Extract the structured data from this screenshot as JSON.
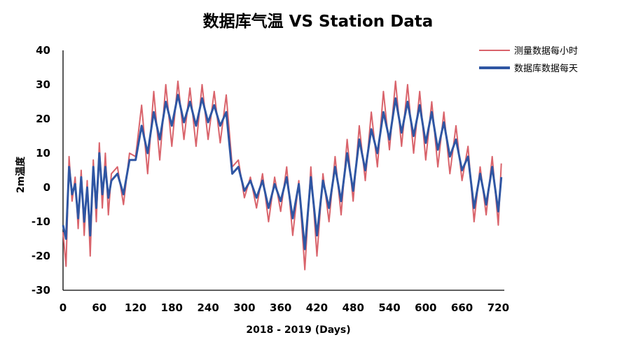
{
  "chart_data": {
    "type": "line",
    "title": "数据库气温 VS  Station Data",
    "xlabel": "2018 - 2019 (Days)",
    "ylabel": "2m温度",
    "xlim": [
      0,
      730
    ],
    "ylim": [
      -30,
      40
    ],
    "x_ticks": [
      0,
      60,
      120,
      180,
      240,
      300,
      360,
      420,
      480,
      540,
      600,
      660,
      720
    ],
    "y_ticks": [
      -30,
      -20,
      -10,
      0,
      10,
      20,
      30,
      40
    ],
    "grid": false,
    "legend_position": "top-right",
    "series": [
      {
        "name": "测量数据每小时",
        "color": "#d9636b",
        "x": [
          0,
          5,
          10,
          15,
          20,
          25,
          30,
          35,
          40,
          45,
          50,
          55,
          60,
          65,
          70,
          75,
          80,
          90,
          100,
          110,
          120,
          130,
          140,
          150,
          160,
          170,
          180,
          190,
          200,
          210,
          220,
          230,
          240,
          250,
          260,
          270,
          280,
          290,
          300,
          310,
          320,
          330,
          340,
          350,
          360,
          370,
          380,
          390,
          400,
          410,
          420,
          430,
          440,
          450,
          460,
          470,
          480,
          490,
          500,
          510,
          520,
          530,
          540,
          550,
          560,
          570,
          580,
          590,
          600,
          610,
          620,
          630,
          640,
          650,
          660,
          670,
          680,
          690,
          700,
          710,
          720,
          725
        ],
        "y": [
          -13,
          -23,
          9,
          -4,
          3,
          -12,
          5,
          -14,
          2,
          -20,
          8,
          -10,
          13,
          -6,
          10,
          -8,
          4,
          6,
          -5,
          10,
          9,
          24,
          4,
          28,
          8,
          30,
          12,
          31,
          14,
          29,
          12,
          30,
          14,
          28,
          13,
          27,
          6,
          8,
          -3,
          3,
          -6,
          4,
          -10,
          3,
          -7,
          6,
          -14,
          2,
          -24,
          6,
          -20,
          4,
          -10,
          9,
          -8,
          14,
          -4,
          18,
          2,
          22,
          6,
          28,
          11,
          31,
          12,
          30,
          10,
          28,
          8,
          25,
          6,
          22,
          4,
          18,
          2,
          12,
          -10,
          6,
          -8,
          9,
          -11,
          7
        ]
      },
      {
        "name": "数据库数据每天",
        "color": "#2f56a3",
        "x": [
          0,
          5,
          10,
          15,
          20,
          25,
          30,
          35,
          40,
          45,
          50,
          55,
          60,
          65,
          70,
          75,
          80,
          90,
          100,
          110,
          120,
          130,
          140,
          150,
          160,
          170,
          180,
          190,
          200,
          210,
          220,
          230,
          240,
          250,
          260,
          270,
          280,
          290,
          300,
          310,
          320,
          330,
          340,
          350,
          360,
          370,
          380,
          390,
          400,
          410,
          420,
          430,
          440,
          450,
          460,
          470,
          480,
          490,
          500,
          510,
          520,
          530,
          540,
          550,
          560,
          570,
          580,
          590,
          600,
          610,
          620,
          630,
          640,
          650,
          660,
          670,
          680,
          690,
          700,
          710,
          720,
          725
        ],
        "y": [
          -11,
          -15,
          6,
          -2,
          1,
          -9,
          3,
          -10,
          0,
          -14,
          6,
          -6,
          10,
          -2,
          6,
          -3,
          2,
          4,
          -2,
          8,
          8,
          18,
          10,
          22,
          14,
          25,
          18,
          27,
          19,
          25,
          18,
          26,
          19,
          24,
          18,
          22,
          4,
          6,
          -1,
          2,
          -3,
          2,
          -6,
          1,
          -4,
          3,
          -9,
          1,
          -18,
          3,
          -14,
          2,
          -6,
          6,
          -4,
          10,
          -1,
          14,
          5,
          17,
          10,
          22,
          14,
          26,
          16,
          25,
          15,
          24,
          13,
          22,
          11,
          19,
          9,
          14,
          5,
          9,
          -6,
          4,
          -5,
          6,
          -7,
          3
        ]
      }
    ]
  }
}
